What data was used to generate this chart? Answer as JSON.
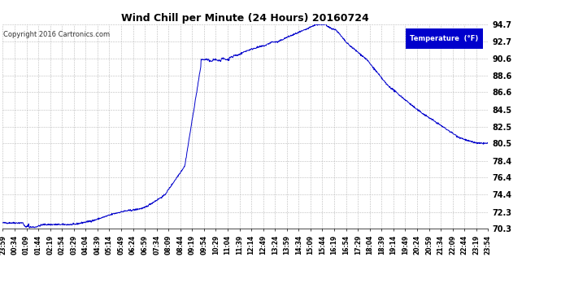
{
  "title": "Wind Chill per Minute (24 Hours) 20160724",
  "copyright": "Copyright 2016 Cartronics.com",
  "legend_label": "Temperature  (°F)",
  "line_color": "#0000cc",
  "background_color": "#ffffff",
  "plot_bg_color": "#ffffff",
  "grid_color": "#aaaaaa",
  "ylim": [
    70.3,
    94.7
  ],
  "yticks": [
    70.3,
    72.3,
    74.4,
    76.4,
    78.4,
    80.5,
    82.5,
    84.5,
    86.6,
    88.6,
    90.6,
    92.7,
    94.7
  ],
  "x_labels": [
    "23:59",
    "00:34",
    "01:09",
    "01:44",
    "02:19",
    "02:54",
    "03:29",
    "04:04",
    "04:39",
    "05:14",
    "05:49",
    "06:24",
    "06:59",
    "07:34",
    "08:09",
    "08:44",
    "09:19",
    "09:54",
    "10:29",
    "11:04",
    "11:39",
    "12:14",
    "12:49",
    "13:24",
    "13:59",
    "14:34",
    "15:09",
    "15:44",
    "16:19",
    "16:54",
    "17:29",
    "18:04",
    "18:39",
    "19:14",
    "19:49",
    "20:24",
    "20:59",
    "21:34",
    "22:09",
    "22:44",
    "23:19",
    "23:54"
  ],
  "num_points": 1440,
  "legend_bg": "#0000cc",
  "legend_text_color": "#ffffff"
}
